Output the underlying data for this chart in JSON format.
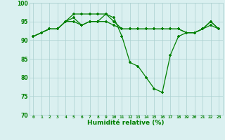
{
  "line1": [
    91,
    92,
    93,
    93,
    95,
    97,
    97,
    97,
    97,
    97,
    96,
    91,
    84,
    83,
    80,
    77,
    76,
    86,
    91,
    92,
    92,
    93,
    95,
    93
  ],
  "line2": [
    91,
    92,
    93,
    93,
    95,
    96,
    94,
    95,
    95,
    97,
    95,
    93,
    93,
    93,
    93,
    93,
    93,
    93,
    93,
    92,
    92,
    93,
    95,
    93
  ],
  "line3": [
    91,
    92,
    93,
    93,
    95,
    95,
    94,
    95,
    95,
    95,
    94,
    93,
    93,
    93,
    93,
    93,
    93,
    93,
    93,
    92,
    92,
    93,
    94,
    93
  ],
  "x": [
    0,
    1,
    2,
    3,
    4,
    5,
    6,
    7,
    8,
    9,
    10,
    11,
    12,
    13,
    14,
    15,
    16,
    17,
    18,
    19,
    20,
    21,
    22,
    23
  ],
  "xlabel": "Humidité relative (%)",
  "ylim": [
    70,
    100
  ],
  "yticks": [
    70,
    75,
    80,
    85,
    90,
    95,
    100
  ],
  "line_color": "#008000",
  "bg_color": "#daf0f0",
  "grid_color": "#aacfcf",
  "tick_color": "#008000",
  "label_color": "#008000"
}
